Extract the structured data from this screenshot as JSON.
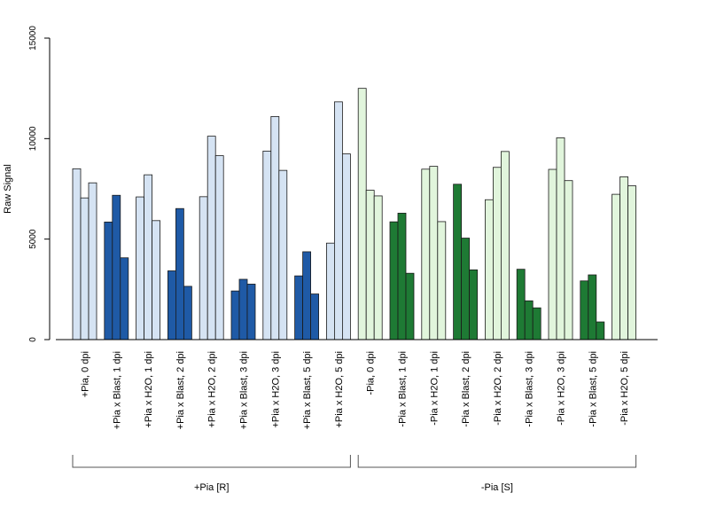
{
  "chart_data": {
    "type": "bar",
    "ylabel": "Raw Signal",
    "ylim": [
      0,
      15000
    ],
    "yticks": [
      0,
      5000,
      10000,
      15000
    ],
    "grid": false,
    "legend": "none",
    "colors": {
      "h2o_plus": "#d5e3f3",
      "blast_plus": "#1f5aa6",
      "h2o_minus": "#e1f5dc",
      "blast_minus": "#1e7a34",
      "bar_stroke": "#1a1a1a"
    },
    "categories": [
      {
        "label": "+Pia, 0 dpi",
        "values": [
          8500,
          7050,
          7800
        ],
        "color": "h2o_plus"
      },
      {
        "label": "+Pia x Blast, 1 dpi",
        "values": [
          5850,
          7180,
          4070
        ],
        "color": "blast_plus"
      },
      {
        "label": "+Pia x H2O, 1 dpi",
        "values": [
          7100,
          8200,
          5920
        ],
        "color": "h2o_plus"
      },
      {
        "label": "+Pia x Blast, 2 dpi",
        "values": [
          3420,
          6520,
          2650
        ],
        "color": "blast_plus"
      },
      {
        "label": "+Pia x H2O, 2 dpi",
        "values": [
          7110,
          10120,
          9150
        ],
        "color": "h2o_plus"
      },
      {
        "label": "+Pia x Blast, 3 dpi",
        "values": [
          2420,
          3000,
          2760
        ],
        "color": "blast_plus"
      },
      {
        "label": "+Pia x H2O, 3 dpi",
        "values": [
          9380,
          11100,
          8420
        ],
        "color": "h2o_plus"
      },
      {
        "label": "+Pia x Blast, 5 dpi",
        "values": [
          3170,
          4370,
          2270
        ],
        "color": "blast_plus"
      },
      {
        "label": "+Pia x H2O, 5 dpi",
        "values": [
          4800,
          11830,
          9240
        ],
        "color": "h2o_plus"
      },
      {
        "label": "-Pia, 0 dpi",
        "values": [
          12500,
          7430,
          7150
        ],
        "color": "h2o_minus"
      },
      {
        "label": "-Pia x Blast, 1 dpi",
        "values": [
          5860,
          6290,
          3300
        ],
        "color": "blast_minus"
      },
      {
        "label": "-Pia x H2O, 1 dpi",
        "values": [
          8480,
          8620,
          5870
        ],
        "color": "h2o_minus"
      },
      {
        "label": "-Pia x Blast, 2 dpi",
        "values": [
          7730,
          5050,
          3470
        ],
        "color": "blast_minus"
      },
      {
        "label": "-Pia x H2O, 2 dpi",
        "values": [
          6960,
          8570,
          9360
        ],
        "color": "h2o_minus"
      },
      {
        "label": "-Pia x Blast, 3 dpi",
        "values": [
          3500,
          1930,
          1580
        ],
        "color": "blast_minus"
      },
      {
        "label": "-Pia x H2O, 3 dpi",
        "values": [
          8470,
          10040,
          7910
        ],
        "color": "h2o_minus"
      },
      {
        "label": "-Pia x Blast, 5 dpi",
        "values": [
          2920,
          3220,
          880
        ],
        "color": "blast_minus"
      },
      {
        "label": "-Pia x H2O, 5 dpi",
        "values": [
          7230,
          8100,
          7650
        ],
        "color": "h2o_minus"
      }
    ],
    "groups": [
      {
        "label": "+Pia [R]",
        "from": 0,
        "to": 8
      },
      {
        "label": "-Pia [S]",
        "from": 9,
        "to": 17
      }
    ]
  }
}
